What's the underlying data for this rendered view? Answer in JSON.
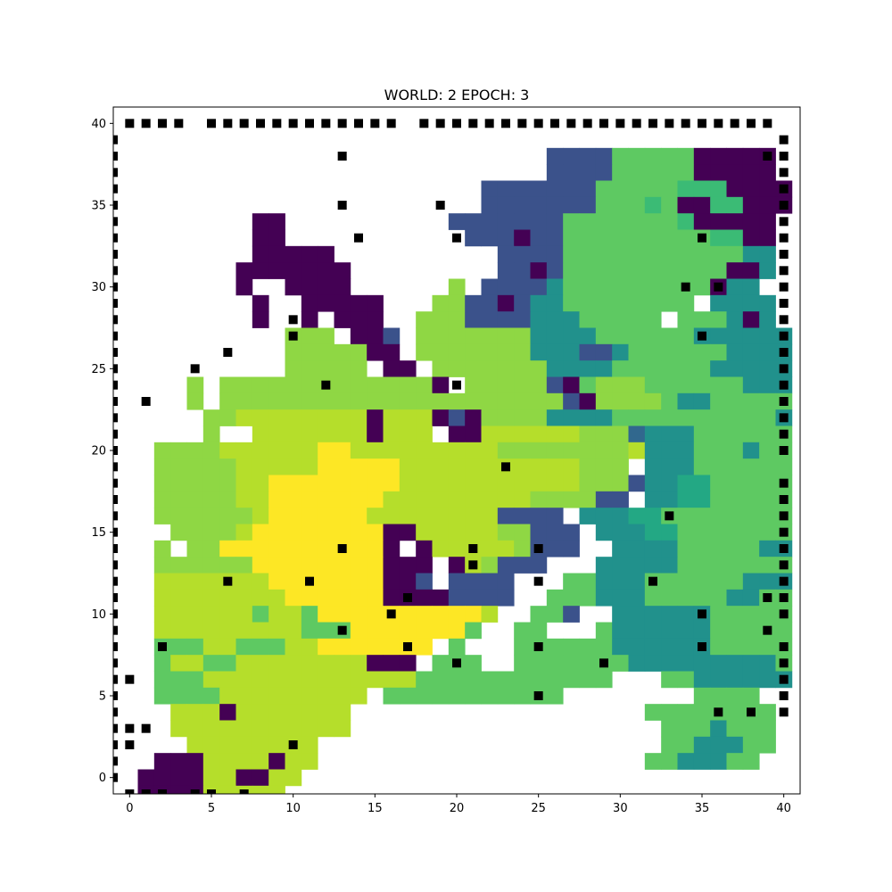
{
  "chart_data": {
    "type": "heatmap",
    "title": "WORLD: 2 EPOCH: 3",
    "xlabel": "",
    "ylabel": "",
    "xlim": [
      -1,
      41
    ],
    "ylim": [
      -1,
      41
    ],
    "xticks": [
      "0",
      "5",
      "10",
      "15",
      "20",
      "25",
      "30",
      "35",
      "40"
    ],
    "yticks": [
      "0",
      "5",
      "10",
      "15",
      "20",
      "25",
      "30",
      "35",
      "40"
    ],
    "colormap": "viridis",
    "palette": {
      "0": "#440154",
      "1": "#3b528b",
      "2": "#31688e",
      "3": "#21918c",
      "4": "#23a884",
      "5": "#3bbb75",
      "6": "#5ec962",
      "7": "#8fd744",
      "8": "#b5de2b",
      "9": "#fde725"
    },
    "grid_rows_top_to_bottom": [
      "........................................",
      ".......................................",
      "..........................11116666600000",
      "..........................11116666600000",
      "......................1111111666665550000",
      "......................1111111666560055000",
      "........00..........11111116666666500000",
      "........00...........1110116666666665500",
      "........00000..........11116666666666633",
      ".......0000000.........11016666666666003",
      ".......0..0000......7.11113666666666033",
      "........0..00000...7711013366666666.3333",
      "........0..0.000..777111133366666.666303",
      "..........777.001.77777773333666666333333",
      "..........7777700.7777777333113666666333333",
      "..........77777.00.7777777333366666633333",
      "....7.77777777777770.7777710677766666633333",
      "....7.77777777777777777777710777763366666633333",
      ".....77888888880888010777733336666666666336666",
      ".....7..88888880888.00888888777233366666666666366",
      "..777788888899888888888777777778333666366666666333",
      "..77777888889999988888888888777.333666666663366663",
      "..7777788999999998888888888877713344666666636666",
      "..77777889999999888888888777711.3344666666666366",
      "..7777778999999888888881111.33344666666666666",
      "...7777899999999008888877111.33344666666666666",
      "..7.7799999999990.0888887111..3333666663333366",
      "..77777799999999000.087111...3333366666666666",
      "..88888889999999001.1111...66333666666333366",
      "..8888888899999900001111..666333666663366666",
      "..888888688699999999998..661..33333366666636666",
      "..88888888866699999996..66...6333333666666666",
      "..66688666889999999.6...666666333333666666..6",
      "..6886688888888000.666..666666633333333366",
      "..6668888888888888666666666666...6633333366",
      "..6666888888888.66666666666........6666...",
      "...88808888888..................66666666...",
      "...88888888888...................6663666...",
      "....88888888.....................6633366...",
      "..0008888088....................6633366...",
      ".0000880088.....................",
      ".000088888......................",
      "......................................"
    ],
    "markers": [
      [
        0,
        40
      ],
      [
        1,
        40
      ],
      [
        2,
        40
      ],
      [
        3,
        40
      ],
      [
        5,
        40
      ],
      [
        6,
        40
      ],
      [
        7,
        40
      ],
      [
        8,
        40
      ],
      [
        9,
        40
      ],
      [
        10,
        40
      ],
      [
        11,
        40
      ],
      [
        12,
        40
      ],
      [
        13,
        40
      ],
      [
        14,
        40
      ],
      [
        15,
        40
      ],
      [
        16,
        40
      ],
      [
        18,
        40
      ],
      [
        19,
        40
      ],
      [
        20,
        40
      ],
      [
        21,
        40
      ],
      [
        22,
        40
      ],
      [
        23,
        40
      ],
      [
        24,
        40
      ],
      [
        25,
        40
      ],
      [
        26,
        40
      ],
      [
        27,
        40
      ],
      [
        28,
        40
      ],
      [
        29,
        40
      ],
      [
        30,
        40
      ],
      [
        31,
        40
      ],
      [
        32,
        40
      ],
      [
        33,
        40
      ],
      [
        34,
        40
      ],
      [
        35,
        40
      ],
      [
        36,
        40
      ],
      [
        37,
        40
      ],
      [
        38,
        40
      ],
      [
        39,
        40
      ],
      [
        -1,
        39
      ],
      [
        -1,
        38
      ],
      [
        -1,
        37
      ],
      [
        -1,
        36
      ],
      [
        -1,
        35
      ],
      [
        -1,
        34
      ],
      [
        -1,
        33
      ],
      [
        -1,
        32
      ],
      [
        -1,
        31
      ],
      [
        -1,
        30
      ],
      [
        -1,
        29
      ],
      [
        -1,
        28
      ],
      [
        -1,
        27
      ],
      [
        -1,
        26
      ],
      [
        -1,
        25
      ],
      [
        -1,
        24
      ],
      [
        -1,
        23
      ],
      [
        -1,
        22
      ],
      [
        -1,
        21
      ],
      [
        -1,
        20
      ],
      [
        -1,
        19
      ],
      [
        -1,
        18
      ],
      [
        -1,
        17
      ],
      [
        -1,
        16
      ],
      [
        -1,
        15
      ],
      [
        -1,
        14
      ],
      [
        -1,
        13
      ],
      [
        -1,
        12
      ],
      [
        -1,
        11
      ],
      [
        -1,
        10
      ],
      [
        -1,
        9
      ],
      [
        -1,
        8
      ],
      [
        -1,
        7
      ],
      [
        -1,
        6
      ],
      [
        -1,
        5
      ],
      [
        -1,
        4
      ],
      [
        -1,
        3
      ],
      [
        -1,
        2
      ],
      [
        -1,
        1
      ],
      [
        -1,
        0
      ],
      [
        40,
        39
      ],
      [
        40,
        38
      ],
      [
        40,
        37
      ],
      [
        40,
        36
      ],
      [
        40,
        35
      ],
      [
        40,
        34
      ],
      [
        40,
        33
      ],
      [
        40,
        32
      ],
      [
        40,
        31
      ],
      [
        40,
        30
      ],
      [
        40,
        29
      ],
      [
        40,
        28
      ],
      [
        40,
        27
      ],
      [
        40,
        26
      ],
      [
        40,
        25
      ],
      [
        40,
        24
      ],
      [
        40,
        23
      ],
      [
        40,
        22
      ],
      [
        40,
        21
      ],
      [
        40,
        20
      ],
      [
        40,
        18
      ],
      [
        40,
        17
      ],
      [
        40,
        16
      ],
      [
        40,
        15
      ],
      [
        40,
        14
      ],
      [
        40,
        13
      ],
      [
        40,
        12
      ],
      [
        40,
        11
      ],
      [
        40,
        10
      ],
      [
        40,
        8
      ],
      [
        40,
        7
      ],
      [
        40,
        6
      ],
      [
        40,
        5
      ],
      [
        40,
        4
      ],
      [
        0,
        -1
      ],
      [
        1,
        -1
      ],
      [
        2,
        -1
      ],
      [
        4,
        -1
      ],
      [
        5,
        -1
      ],
      [
        7,
        -1
      ],
      [
        13,
        38
      ],
      [
        39,
        38
      ],
      [
        13,
        35
      ],
      [
        19,
        35
      ],
      [
        14,
        33
      ],
      [
        20,
        33
      ],
      [
        35,
        33
      ],
      [
        34,
        30
      ],
      [
        36,
        30
      ],
      [
        10,
        28
      ],
      [
        10,
        27
      ],
      [
        35,
        27
      ],
      [
        6,
        26
      ],
      [
        4,
        25
      ],
      [
        12,
        24
      ],
      [
        20,
        24
      ],
      [
        1,
        23
      ],
      [
        23,
        19
      ],
      [
        33,
        16
      ],
      [
        13,
        14
      ],
      [
        21,
        14
      ],
      [
        25,
        14
      ],
      [
        21,
        13
      ],
      [
        6,
        12
      ],
      [
        11,
        12
      ],
      [
        25,
        12
      ],
      [
        32,
        12
      ],
      [
        17,
        11
      ],
      [
        39,
        11
      ],
      [
        16,
        10
      ],
      [
        35,
        10
      ],
      [
        13,
        9
      ],
      [
        39,
        9
      ],
      [
        2,
        8
      ],
      [
        17,
        8
      ],
      [
        25,
        8
      ],
      [
        35,
        8
      ],
      [
        20,
        7
      ],
      [
        29,
        7
      ],
      [
        0,
        6
      ],
      [
        25,
        5
      ],
      [
        36,
        4
      ],
      [
        38,
        4
      ],
      [
        0,
        3
      ],
      [
        1,
        3
      ],
      [
        0,
        2
      ],
      [
        10,
        2
      ]
    ]
  }
}
